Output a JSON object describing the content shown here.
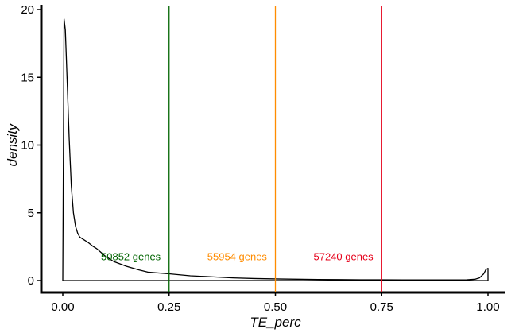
{
  "chart_data": {
    "type": "area",
    "xlabel": "TE_perc",
    "ylabel": "density",
    "xlim": [
      0,
      1
    ],
    "ylim": [
      0,
      20
    ],
    "x_ticks": [
      0.0,
      0.25,
      0.5,
      0.75,
      1.0
    ],
    "x_tick_labels": [
      "0.00",
      "0.25",
      "0.50",
      "0.75",
      "1.00"
    ],
    "y_ticks": [
      0,
      5,
      10,
      15,
      20
    ],
    "y_tick_labels": [
      "0",
      "5",
      "10",
      "15",
      "20"
    ],
    "grid": false,
    "series": [
      {
        "x": [
          0.0,
          0.003,
          0.006,
          0.01,
          0.015,
          0.02,
          0.025,
          0.03,
          0.035,
          0.04,
          0.05,
          0.06,
          0.07,
          0.08,
          0.1,
          0.12,
          0.15,
          0.18,
          0.2,
          0.25,
          0.3,
          0.35,
          0.4,
          0.45,
          0.5,
          0.55,
          0.6,
          0.65,
          0.7,
          0.75,
          0.8,
          0.85,
          0.9,
          0.95,
          0.97,
          0.98,
          0.99,
          0.995,
          1.0
        ],
        "y": [
          0.0,
          19.3,
          18.5,
          15.0,
          10.5,
          7.0,
          5.0,
          4.0,
          3.5,
          3.2,
          3.0,
          2.8,
          2.55,
          2.35,
          1.8,
          1.4,
          1.05,
          0.78,
          0.62,
          0.5,
          0.35,
          0.28,
          0.2,
          0.15,
          0.12,
          0.1,
          0.08,
          0.07,
          0.06,
          0.06,
          0.05,
          0.05,
          0.05,
          0.06,
          0.1,
          0.2,
          0.5,
          0.8,
          0.9
        ]
      }
    ],
    "vlines": [
      {
        "x": 0.25,
        "color": "#006400",
        "label": "50852 genes",
        "label_x": 0.16
      },
      {
        "x": 0.5,
        "color": "#FF8C00",
        "label": "55954 genes",
        "label_x": 0.41
      },
      {
        "x": 0.75,
        "color": "#E6001A",
        "label": "57240 genes",
        "label_x": 0.66
      }
    ],
    "vline_label_y": 1.8
  }
}
